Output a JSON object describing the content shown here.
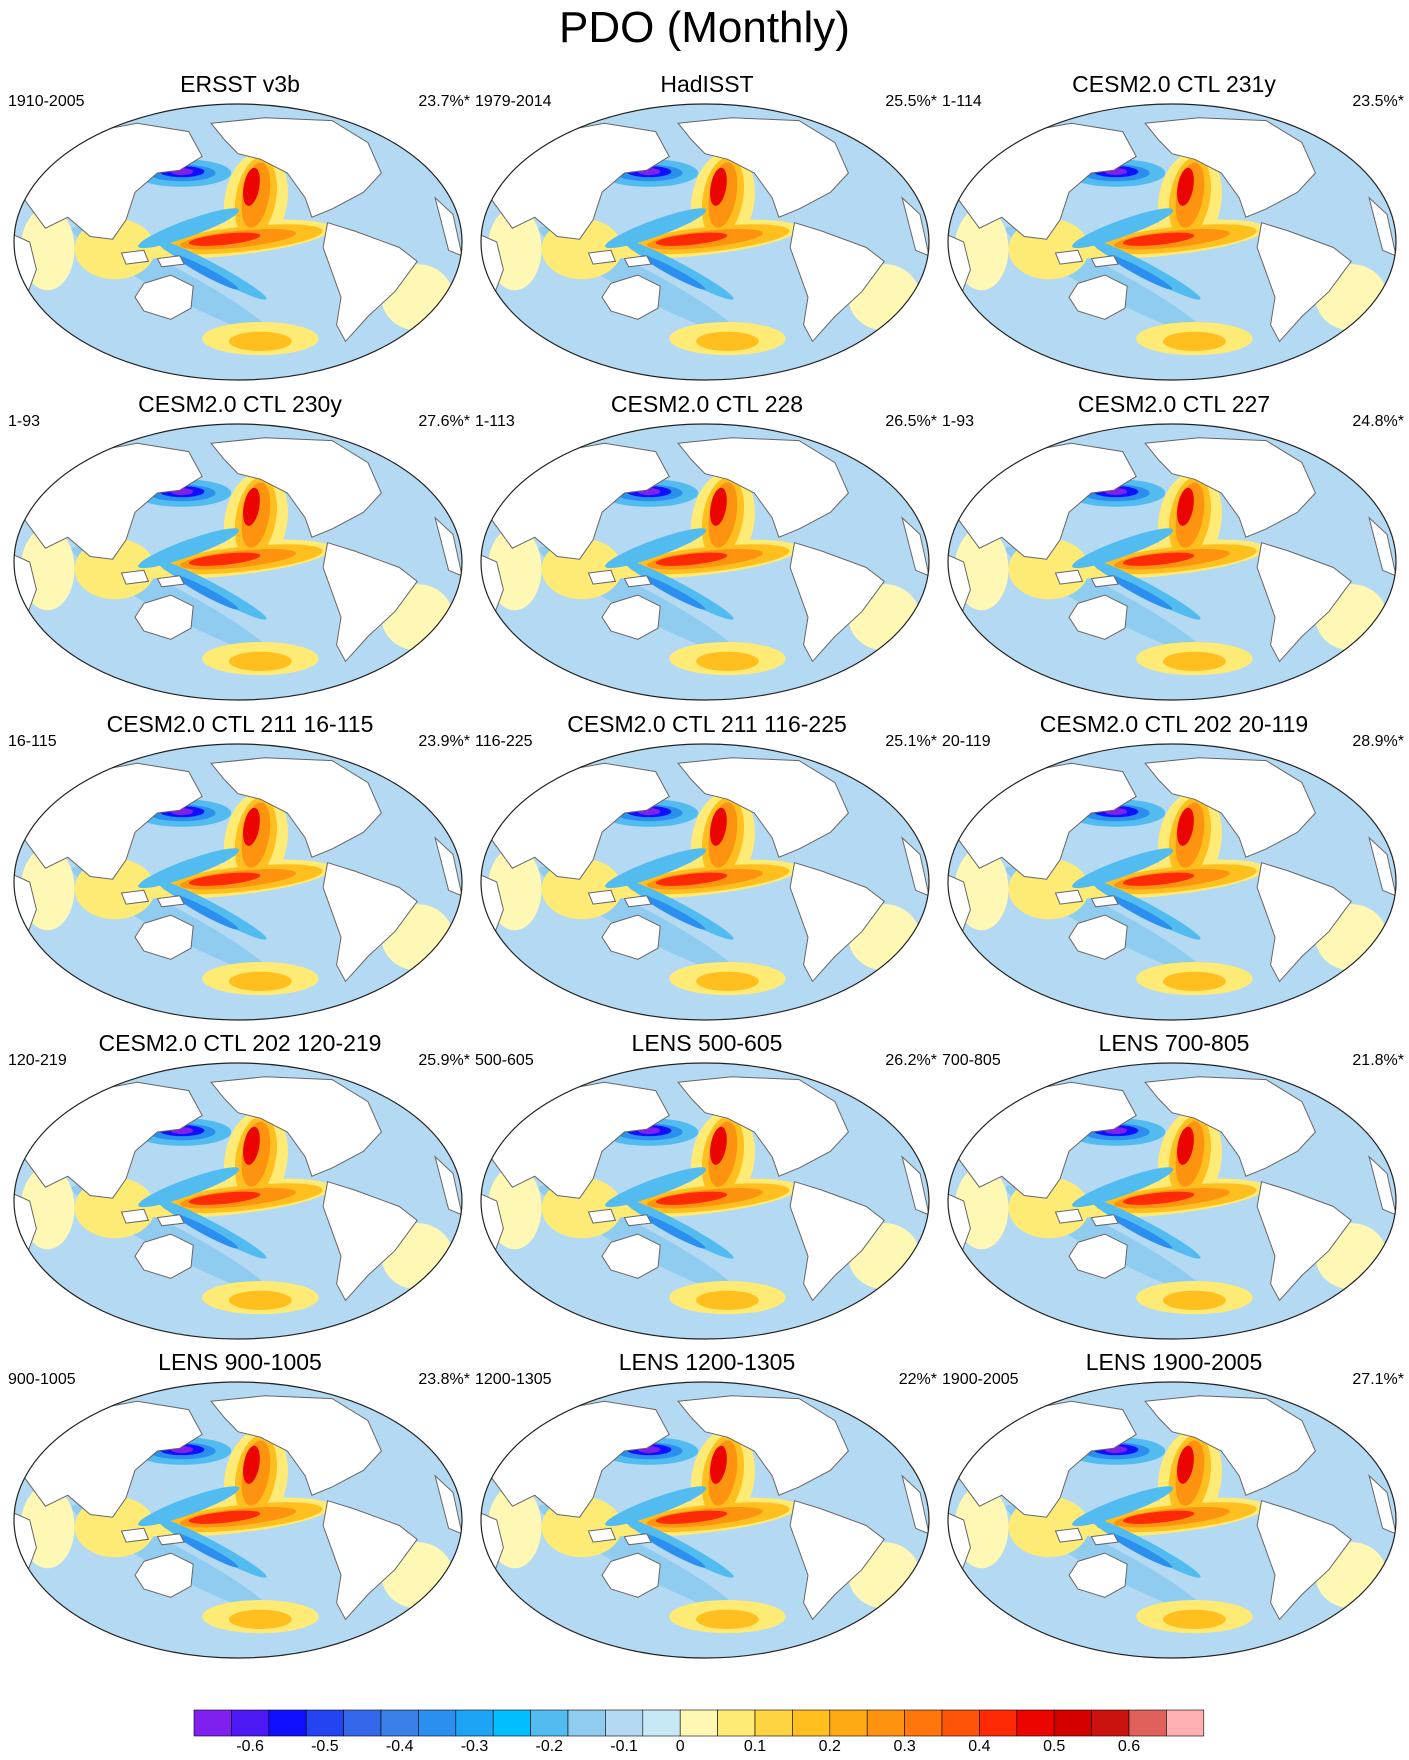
{
  "title": "PDO (Monthly)",
  "chart_data": [
    {
      "type": "heatmap",
      "title": "ERSST v3b",
      "period": "1910-2005",
      "variance": "23.7%*"
    },
    {
      "type": "heatmap",
      "title": "HadISST",
      "period": "1979-2014",
      "variance": "25.5%*"
    },
    {
      "type": "heatmap",
      "title": "CESM2.0 CTL 231y",
      "period": "1-114",
      "variance": "23.5%*"
    },
    {
      "type": "heatmap",
      "title": "CESM2.0 CTL 230y",
      "period": "1-93",
      "variance": "27.6%*"
    },
    {
      "type": "heatmap",
      "title": "CESM2.0 CTL 228",
      "period": "1-113",
      "variance": "26.5%*"
    },
    {
      "type": "heatmap",
      "title": "CESM2.0 CTL 227",
      "period": "1-93",
      "variance": "24.8%*"
    },
    {
      "type": "heatmap",
      "title": "CESM2.0 CTL 211 16-115",
      "period": "16-115",
      "variance": "23.9%*"
    },
    {
      "type": "heatmap",
      "title": "CESM2.0 CTL 211 116-225",
      "period": "116-225",
      "variance": "25.1%*"
    },
    {
      "type": "heatmap",
      "title": "CESM2.0 CTL 202 20-119",
      "period": "20-119",
      "variance": "28.9%*"
    },
    {
      "type": "heatmap",
      "title": "CESM2.0 CTL 202 120-219",
      "period": "120-219",
      "variance": "25.9%*"
    },
    {
      "type": "heatmap",
      "title": "LENS 500-605",
      "period": "500-605",
      "variance": "26.2%*"
    },
    {
      "type": "heatmap",
      "title": "LENS 700-805",
      "period": "700-805",
      "variance": "21.8%*"
    },
    {
      "type": "heatmap",
      "title": "LENS 900-1005",
      "period": "900-1005",
      "variance": "23.8%*"
    },
    {
      "type": "heatmap",
      "title": "LENS 1200-1305",
      "period": "1200-1305",
      "variance": "22%*"
    },
    {
      "type": "heatmap",
      "title": "LENS 1900-2005",
      "period": "1900-2005",
      "variance": "27.1%*"
    }
  ],
  "colorbar": {
    "colors": [
      "#8020ee",
      "#4c19f5",
      "#1010fe",
      "#2443f1",
      "#3567eb",
      "#3a80e8",
      "#2a8fee",
      "#1ea4f5",
      "#03befe",
      "#52bbf0",
      "#8fccf0",
      "#b4d9f2",
      "#c7e8f7",
      "#fff8b4",
      "#feeb75",
      "#ffd442",
      "#ffc01f",
      "#feaa12",
      "#fe9310",
      "#ff760c",
      "#fe5409",
      "#fe2a05",
      "#eb0400",
      "#d40000",
      "#ca120e",
      "#e0605b",
      "#ffb0b0"
    ],
    "ticks": [
      {
        "label": "-0.6",
        "pos": 1.5
      },
      {
        "label": "-0.5",
        "pos": 3.5
      },
      {
        "label": "-0.4",
        "pos": 5.5
      },
      {
        "label": "-0.3",
        "pos": 7.5
      },
      {
        "label": "-0.2",
        "pos": 9.5
      },
      {
        "label": "-0.1",
        "pos": 11.5
      },
      {
        "label": "0",
        "pos": 13
      },
      {
        "label": "0.1",
        "pos": 15
      },
      {
        "label": "0.2",
        "pos": 17
      },
      {
        "label": "0.3",
        "pos": 19
      },
      {
        "label": "0.4",
        "pos": 21
      },
      {
        "label": "0.5",
        "pos": 23
      },
      {
        "label": "0.6",
        "pos": 25
      }
    ]
  }
}
